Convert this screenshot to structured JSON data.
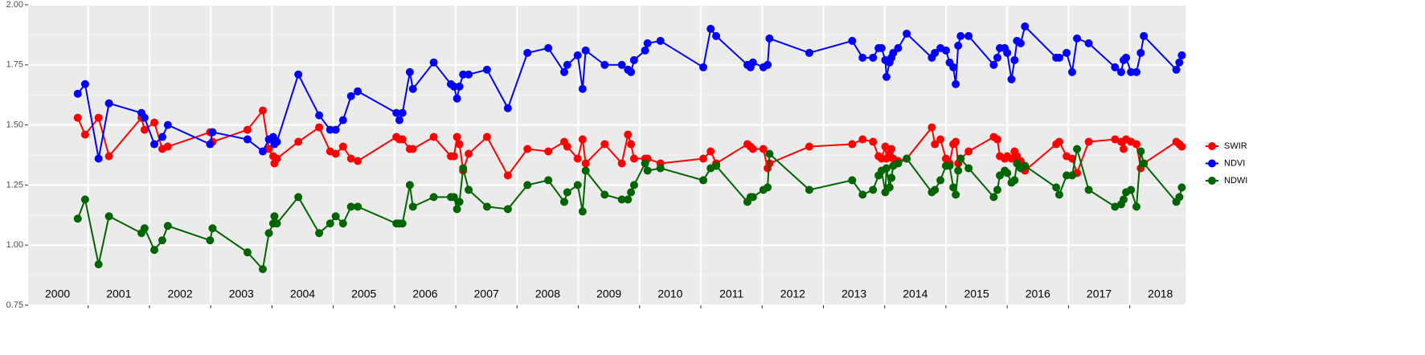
{
  "chart_data": {
    "type": "line",
    "x": [
      2000.83,
      2000.95,
      2001.17,
      2001.34,
      2001.87,
      2001.92,
      2002.08,
      2002.21,
      2002.3,
      2002.99,
      2003.03,
      2003.6,
      2003.85,
      2003.95,
      2004.02,
      2004.04,
      2004.08,
      2004.43,
      2004.77,
      2004.95,
      2005.04,
      2005.16,
      2005.29,
      2005.4,
      2006.03,
      2006.08,
      2006.13,
      2006.25,
      2006.3,
      2006.64,
      2006.92,
      2006.97,
      2007.02,
      2007.06,
      2007.12,
      2007.21,
      2007.51,
      2007.85,
      2008.17,
      2008.51,
      2008.77,
      2008.82,
      2008.99,
      2009.07,
      2009.12,
      2009.43,
      2009.71,
      2009.81,
      2009.86,
      2009.91,
      2010.09,
      2010.13,
      2010.34,
      2011.04,
      2011.16,
      2011.25,
      2011.76,
      2011.81,
      2011.85,
      2012.02,
      2012.09,
      2012.12,
      2012.77,
      2013.47,
      2013.64,
      2013.81,
      2013.9,
      2013.95,
      2014.01,
      2014.03,
      2014.08,
      2014.11,
      2014.14,
      2014.22,
      2014.36,
      2014.77,
      2014.82,
      2014.91,
      2015.0,
      2015.06,
      2015.12,
      2015.16,
      2015.2,
      2015.24,
      2015.37,
      2015.78,
      2015.84,
      2015.88,
      2015.96,
      2016.0,
      2016.07,
      2016.12,
      2016.16,
      2016.22,
      2016.29,
      2016.8,
      2016.85,
      2016.97,
      2017.06,
      2017.14,
      2017.33,
      2017.76,
      2017.86,
      2017.9,
      2017.94,
      2018.02,
      2018.11,
      2018.18,
      2018.23,
      2018.76,
      2018.81,
      2018.85
    ],
    "series": [
      {
        "name": "SWIR",
        "color": "#ff0000",
        "values": [
          1.53,
          1.46,
          1.53,
          1.37,
          1.53,
          1.48,
          1.51,
          1.4,
          1.41,
          1.47,
          1.43,
          1.48,
          1.56,
          1.4,
          1.37,
          1.34,
          1.36,
          1.43,
          1.49,
          1.39,
          1.38,
          1.41,
          1.36,
          1.35,
          1.45,
          1.44,
          1.44,
          1.4,
          1.4,
          1.45,
          1.37,
          1.37,
          1.45,
          1.42,
          1.31,
          1.38,
          1.45,
          1.29,
          1.4,
          1.39,
          1.43,
          1.41,
          1.36,
          1.44,
          1.34,
          1.42,
          1.34,
          1.46,
          1.42,
          1.36,
          1.36,
          1.36,
          1.34,
          1.36,
          1.39,
          1.34,
          1.42,
          1.41,
          1.4,
          1.4,
          1.32,
          1.34,
          1.41,
          1.42,
          1.44,
          1.43,
          1.37,
          1.36,
          1.41,
          1.36,
          1.38,
          1.4,
          1.36,
          1.35,
          1.36,
          1.49,
          1.42,
          1.44,
          1.36,
          1.34,
          1.42,
          1.43,
          1.34,
          1.36,
          1.39,
          1.45,
          1.44,
          1.37,
          1.36,
          1.37,
          1.36,
          1.39,
          1.37,
          1.35,
          1.31,
          1.42,
          1.43,
          1.37,
          1.36,
          1.3,
          1.43,
          1.44,
          1.43,
          1.4,
          1.44,
          1.43,
          1.42,
          1.32,
          1.34,
          1.43,
          1.42,
          1.41
        ]
      },
      {
        "name": "NDVI",
        "color": "#0000ff",
        "values": [
          1.63,
          1.67,
          1.36,
          1.59,
          1.55,
          1.53,
          1.42,
          1.45,
          1.5,
          1.42,
          1.47,
          1.44,
          1.39,
          1.44,
          1.45,
          1.42,
          1.43,
          1.71,
          1.54,
          1.48,
          1.48,
          1.52,
          1.62,
          1.64,
          1.55,
          1.52,
          1.55,
          1.72,
          1.65,
          1.76,
          1.67,
          1.66,
          1.61,
          1.66,
          1.71,
          1.71,
          1.73,
          1.57,
          1.8,
          1.82,
          1.72,
          1.75,
          1.79,
          1.65,
          1.81,
          1.75,
          1.75,
          1.73,
          1.72,
          1.77,
          1.81,
          1.84,
          1.85,
          1.74,
          1.9,
          1.87,
          1.75,
          1.74,
          1.76,
          1.74,
          1.75,
          1.86,
          1.8,
          1.85,
          1.78,
          1.78,
          1.82,
          1.82,
          1.77,
          1.7,
          1.76,
          1.78,
          1.8,
          1.82,
          1.88,
          1.78,
          1.8,
          1.82,
          1.81,
          1.76,
          1.74,
          1.67,
          1.83,
          1.87,
          1.87,
          1.75,
          1.78,
          1.82,
          1.82,
          1.8,
          1.69,
          1.77,
          1.85,
          1.84,
          1.91,
          1.78,
          1.78,
          1.8,
          1.72,
          1.86,
          1.84,
          1.74,
          1.72,
          1.77,
          1.78,
          1.72,
          1.72,
          1.8,
          1.87,
          1.73,
          1.76,
          1.79
        ]
      },
      {
        "name": "NDWI",
        "color": "#006400",
        "values": [
          1.11,
          1.19,
          0.92,
          1.12,
          1.05,
          1.07,
          0.98,
          1.02,
          1.08,
          1.02,
          1.07,
          0.97,
          0.9,
          1.05,
          1.09,
          1.12,
          1.09,
          1.2,
          1.05,
          1.09,
          1.12,
          1.09,
          1.16,
          1.16,
          1.09,
          1.09,
          1.09,
          1.25,
          1.16,
          1.2,
          1.2,
          1.2,
          1.15,
          1.18,
          1.32,
          1.23,
          1.16,
          1.15,
          1.25,
          1.27,
          1.18,
          1.22,
          1.25,
          1.14,
          1.31,
          1.21,
          1.19,
          1.19,
          1.22,
          1.25,
          1.34,
          1.31,
          1.32,
          1.27,
          1.32,
          1.33,
          1.18,
          1.2,
          1.2,
          1.23,
          1.24,
          1.38,
          1.23,
          1.27,
          1.21,
          1.23,
          1.29,
          1.31,
          1.22,
          1.32,
          1.24,
          1.28,
          1.33,
          1.34,
          1.36,
          1.22,
          1.23,
          1.27,
          1.33,
          1.33,
          1.24,
          1.21,
          1.31,
          1.36,
          1.32,
          1.2,
          1.23,
          1.29,
          1.31,
          1.3,
          1.26,
          1.27,
          1.34,
          1.32,
          1.33,
          1.24,
          1.21,
          1.29,
          1.29,
          1.4,
          1.23,
          1.16,
          1.17,
          1.19,
          1.22,
          1.23,
          1.16,
          1.39,
          1.34,
          1.18,
          1.2,
          1.24
        ]
      }
    ],
    "xlim": [
      2000.02,
      2018.91
    ],
    "xticks": [
      {
        "value": 2000.5,
        "label": "2000"
      },
      {
        "value": 2001.5,
        "label": "2001"
      },
      {
        "value": 2002.5,
        "label": "2002"
      },
      {
        "value": 2003.5,
        "label": "2003"
      },
      {
        "value": 2004.5,
        "label": "2004"
      },
      {
        "value": 2005.5,
        "label": "2005"
      },
      {
        "value": 2006.5,
        "label": "2006"
      },
      {
        "value": 2007.5,
        "label": "2007"
      },
      {
        "value": 2008.5,
        "label": "2008"
      },
      {
        "value": 2009.5,
        "label": "2009"
      },
      {
        "value": 2010.5,
        "label": "2010"
      },
      {
        "value": 2011.5,
        "label": "2011"
      },
      {
        "value": 2012.5,
        "label": "2012"
      },
      {
        "value": 2013.5,
        "label": "2013"
      },
      {
        "value": 2014.5,
        "label": "2014"
      },
      {
        "value": 2015.5,
        "label": "2015"
      },
      {
        "value": 2016.5,
        "label": "2016"
      },
      {
        "value": 2017.5,
        "label": "2017"
      },
      {
        "value": 2018.5,
        "label": "2018"
      }
    ],
    "xgrid": [
      2001,
      2002,
      2003,
      2004,
      2005,
      2006,
      2007,
      2008,
      2009,
      2010,
      2011,
      2012,
      2013,
      2014,
      2015,
      2016,
      2017,
      2018
    ],
    "ylim": [
      0.75,
      2.0
    ],
    "yticks": [
      0.75,
      {
        "value": 1,
        "label": "1.00"
      },
      1.25,
      {
        "value": 1.5,
        "label": "1.50"
      },
      1.75,
      {
        "value": 2,
        "label": "2.00"
      }
    ],
    "yminor": [
      0.875,
      1.125,
      1.375,
      1.625,
      1.875
    ],
    "grid": true,
    "legend": "right"
  }
}
